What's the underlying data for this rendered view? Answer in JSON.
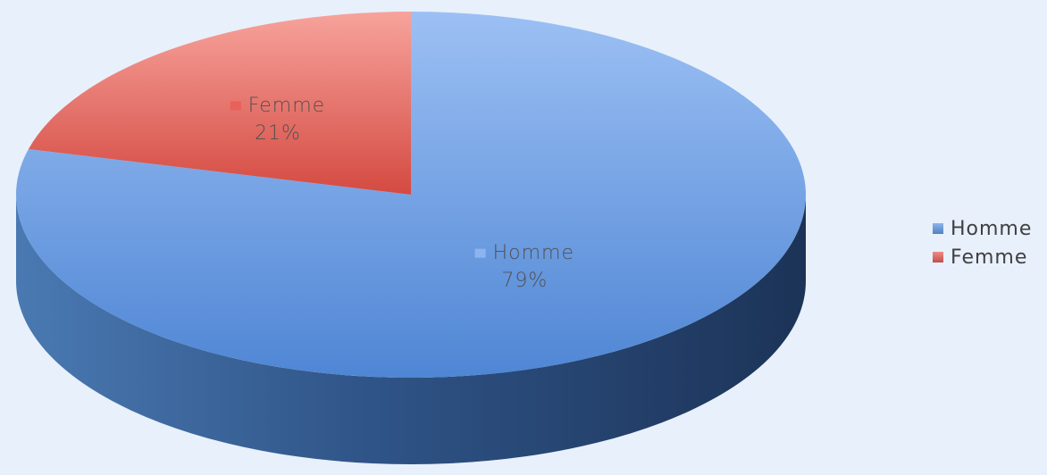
{
  "chart_data": {
    "type": "pie",
    "style": "3d",
    "categories": [
      "Homme",
      "Femme"
    ],
    "values": [
      79,
      21
    ],
    "percent_labels": [
      "79%",
      "21%"
    ],
    "colors": [
      "#4f81bd",
      "#c0504d"
    ],
    "legend_position": "right",
    "title": ""
  }
}
